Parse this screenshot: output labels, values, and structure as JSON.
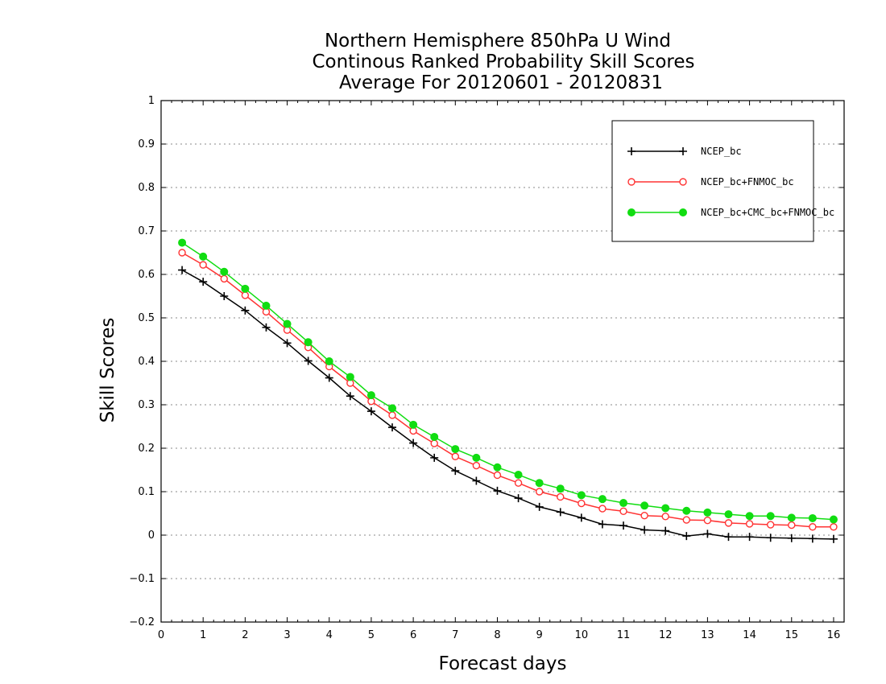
{
  "chart_data": {
    "type": "line",
    "title": [
      "Northern Hemisphere 850hPa U Wind",
      "Continous Ranked Probability Skill Scores",
      "Average For 20120601 - 20120831"
    ],
    "xlabel": "Forecast days",
    "ylabel": "Skill Scores",
    "xlim": [
      0,
      16.25
    ],
    "ylim": [
      -0.2,
      1
    ],
    "xticks": [
      0,
      1,
      2,
      3,
      4,
      5,
      6,
      7,
      8,
      9,
      10,
      11,
      12,
      13,
      14,
      15,
      16
    ],
    "yticks": [
      -0.2,
      -0.1,
      0,
      0.1,
      0.2,
      0.3,
      0.4,
      0.5,
      0.6,
      0.7,
      0.8,
      0.9,
      1
    ],
    "ytick_labels": [
      "−0.2",
      "−0.1",
      "0",
      "0.1",
      "0.2",
      "0.3",
      "0.4",
      "0.5",
      "0.6",
      "0.7",
      "0.8",
      "0.9",
      "1"
    ],
    "grid": "horizontal dotted",
    "legend_position": "top-right",
    "x": [
      0.5,
      1,
      1.5,
      2,
      2.5,
      3,
      3.5,
      4,
      4.5,
      5,
      5.5,
      6,
      6.5,
      7,
      7.5,
      8,
      8.5,
      9,
      9.5,
      10,
      10.5,
      11,
      11.5,
      12,
      12.5,
      13,
      13.5,
      14,
      14.5,
      15,
      15.5,
      16
    ],
    "series": [
      {
        "name": "NCEP_bc",
        "color": "#000000",
        "marker": "plus",
        "values": [
          0.61,
          0.583,
          0.55,
          0.517,
          0.478,
          0.442,
          0.401,
          0.362,
          0.32,
          0.285,
          0.248,
          0.212,
          0.178,
          0.148,
          0.125,
          0.102,
          0.085,
          0.065,
          0.053,
          0.04,
          0.025,
          0.022,
          0.012,
          0.01,
          -0.002,
          0.003,
          -0.004,
          -0.004,
          -0.006,
          -0.007,
          -0.008,
          -0.009
        ]
      },
      {
        "name": "NCEP_bc+FNMOC_bc",
        "color": "#ff3333",
        "marker": "open-circle",
        "values": [
          0.65,
          0.622,
          0.59,
          0.552,
          0.514,
          0.472,
          0.432,
          0.388,
          0.35,
          0.308,
          0.276,
          0.24,
          0.211,
          0.181,
          0.16,
          0.138,
          0.12,
          0.1,
          0.088,
          0.073,
          0.061,
          0.055,
          0.045,
          0.043,
          0.035,
          0.034,
          0.028,
          0.026,
          0.024,
          0.023,
          0.019,
          0.019
        ]
      },
      {
        "name": "NCEP_bc+CMC_bc+FNMOC_bc",
        "color": "#11dd11",
        "marker": "filled-circle",
        "values": [
          0.673,
          0.641,
          0.606,
          0.567,
          0.528,
          0.486,
          0.444,
          0.4,
          0.364,
          0.322,
          0.292,
          0.254,
          0.226,
          0.198,
          0.178,
          0.156,
          0.139,
          0.12,
          0.107,
          0.092,
          0.083,
          0.074,
          0.068,
          0.062,
          0.056,
          0.052,
          0.048,
          0.044,
          0.044,
          0.04,
          0.039,
          0.036
        ]
      }
    ]
  }
}
